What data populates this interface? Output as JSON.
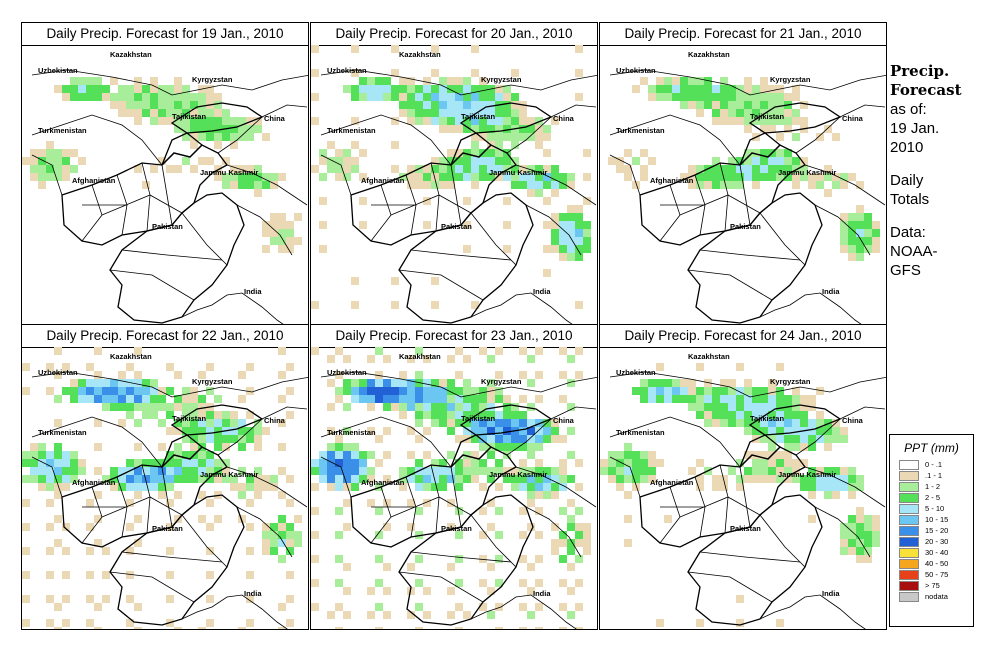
{
  "panels": [
    {
      "title": "Daily Precip. Forecast for  19 Jan., 2010",
      "intensity": 0.35
    },
    {
      "title": "Daily Precip. Forecast for  20 Jan., 2010",
      "intensity": 0.6
    },
    {
      "title": "Daily Precip. Forecast for  21 Jan., 2010",
      "intensity": 0.45
    },
    {
      "title": "Daily Precip. Forecast for  22 Jan., 2010",
      "intensity": 0.8
    },
    {
      "title": "Daily Precip. Forecast for  23 Jan., 2010",
      "intensity": 1.0
    },
    {
      "title": "Daily Precip. Forecast for  24 Jan., 2010",
      "intensity": 0.55
    }
  ],
  "map_labels": {
    "kazakhstan": "Kazakhstan",
    "uzbekistan": "Uzbekistan",
    "kyrgyzstan": "Kyrgyzstan",
    "tajikistan": "Tajikistan",
    "turkmenistan": "Turkmenistan",
    "china": "China",
    "afghanistan": "Afghanistan",
    "jammu_kashmir": "Jammu Kashmir",
    "pakistan": "Pakistan",
    "india": "India"
  },
  "side": {
    "heading_line1": "Precip.",
    "heading_line2": "Forecast",
    "asof_line1": "as of:",
    "asof_line2": "19 Jan.",
    "asof_line3": "2010",
    "daily_line1": "Daily",
    "daily_line2": "Totals",
    "data_line1": "Data:",
    "data_line2": "NOAA-",
    "data_line3": "GFS"
  },
  "legend": {
    "title": "PPT (mm)",
    "items": [
      {
        "label": "0 - .1",
        "color": "#ffffff"
      },
      {
        "label": ".1 - 1",
        "color": "#ead9b4"
      },
      {
        "label": "1 - 2",
        "color": "#a8ee9a"
      },
      {
        "label": "2 - 5",
        "color": "#55e05a"
      },
      {
        "label": "5 - 10",
        "color": "#a6e6f6"
      },
      {
        "label": "10 - 15",
        "color": "#6cc6f2"
      },
      {
        "label": "15 - 20",
        "color": "#3a90e8"
      },
      {
        "label": "20 - 30",
        "color": "#2260d6"
      },
      {
        "label": "30 - 40",
        "color": "#f8e23a"
      },
      {
        "label": "40 - 50",
        "color": "#f6a61c"
      },
      {
        "label": "50 - 75",
        "color": "#e84018"
      },
      {
        "label": "> 75",
        "color": "#a81010"
      },
      {
        "label": "nodata",
        "color": "#c8c8c8"
      }
    ]
  }
}
